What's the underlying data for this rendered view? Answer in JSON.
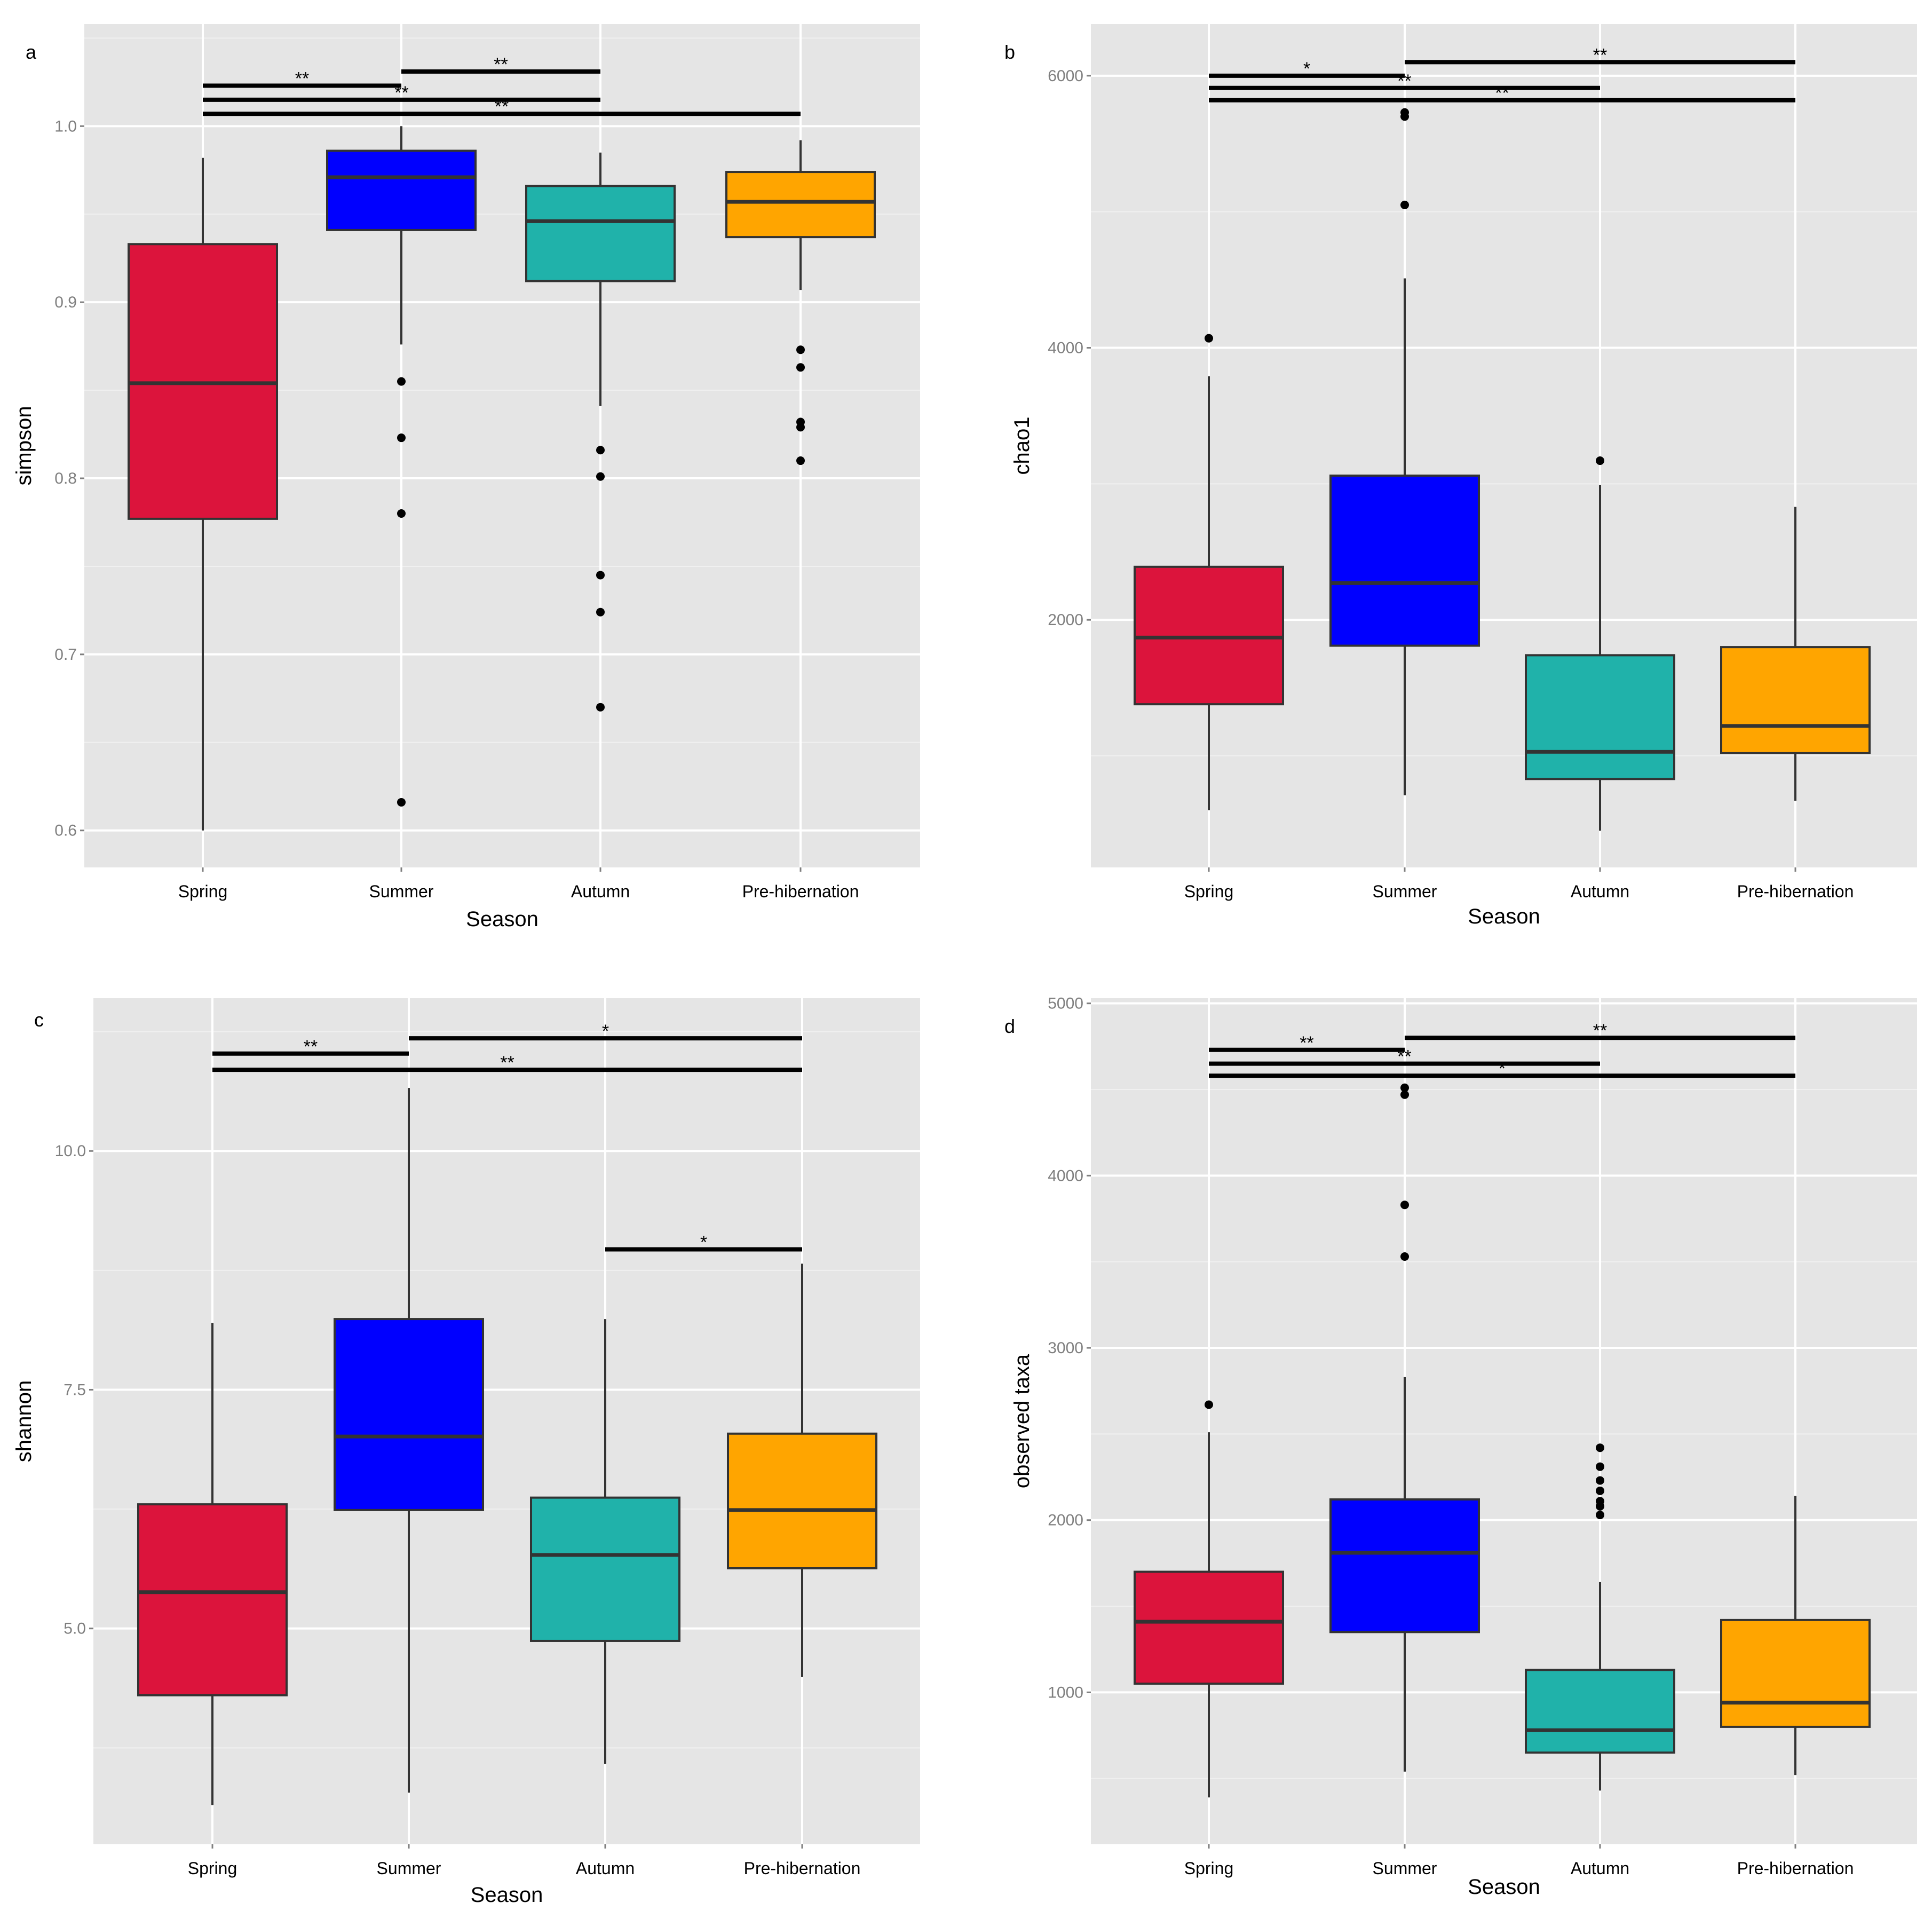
{
  "figure": {
    "background": "#ffffff",
    "panel_background": "#e5e5e5",
    "grid_color": "#ffffff",
    "box_outline": "#333333"
  },
  "chart_data": [
    {
      "type": "box",
      "id": "a",
      "panel_label": "a",
      "xlabel": "Season",
      "ylabel": "simpson",
      "categories": [
        "Spring",
        "Summer",
        "Autumn",
        "Pre-hibernation"
      ],
      "colors": [
        "#dc143c",
        "#0000ff",
        "#20b2aa",
        "#ffa500"
      ],
      "ylim": [
        0.579,
        1.058
      ],
      "yticks": [
        0.6,
        0.7,
        0.8,
        0.9,
        1.0
      ],
      "ytick_labels": [
        "0.6",
        "0.7",
        "0.8",
        "0.9",
        "1.0"
      ],
      "boxes": [
        {
          "category": "Spring",
          "whisker_low": 0.6,
          "q1": 0.777,
          "median": 0.854,
          "q3": 0.933,
          "whisker_high": 0.982,
          "outliers": []
        },
        {
          "category": "Summer",
          "whisker_low": 0.876,
          "q1": 0.941,
          "median": 0.971,
          "q3": 0.986,
          "whisker_high": 1.0,
          "outliers": [
            0.855,
            0.823,
            0.78,
            0.616
          ]
        },
        {
          "category": "Autumn",
          "whisker_low": 0.841,
          "q1": 0.912,
          "median": 0.946,
          "q3": 0.966,
          "whisker_high": 0.985,
          "outliers": [
            0.816,
            0.801,
            0.745,
            0.724,
            0.67
          ]
        },
        {
          "category": "Pre-hibernation",
          "whisker_low": 0.907,
          "q1": 0.937,
          "median": 0.957,
          "q3": 0.974,
          "whisker_high": 0.992,
          "outliers": [
            0.873,
            0.863,
            0.832,
            0.829,
            0.81
          ]
        }
      ],
      "significance": [
        {
          "from": "Spring",
          "to": "Summer",
          "y": 1.023,
          "label": "**"
        },
        {
          "from": "Summer",
          "to": "Autumn",
          "y": 1.031,
          "label": "**"
        },
        {
          "from": "Spring",
          "to": "Autumn",
          "y": 1.015,
          "label": "**"
        },
        {
          "from": "Spring",
          "to": "Pre-hibernation",
          "y": 1.007,
          "label": "**"
        }
      ]
    },
    {
      "type": "box",
      "id": "b",
      "panel_label": "b",
      "xlabel": "Season",
      "ylabel": "chao1",
      "categories": [
        "Spring",
        "Summer",
        "Autumn",
        "Pre-hibernation"
      ],
      "colors": [
        "#dc143c",
        "#0000ff",
        "#20b2aa",
        "#ffa500"
      ],
      "ylim": [
        180,
        6380
      ],
      "yticks": [
        2000,
        4000,
        6000
      ],
      "ytick_labels": [
        "2000",
        "4000",
        "6000"
      ],
      "boxes": [
        {
          "category": "Spring",
          "whisker_low": 600,
          "q1": 1380,
          "median": 1870,
          "q3": 2390,
          "whisker_high": 3790,
          "outliers": [
            4070
          ]
        },
        {
          "category": "Summer",
          "whisker_low": 710,
          "q1": 1810,
          "median": 2270,
          "q3": 3060,
          "whisker_high": 4510,
          "outliers": [
            5050,
            5700,
            5730
          ]
        },
        {
          "category": "Autumn",
          "whisker_low": 450,
          "q1": 830,
          "median": 1030,
          "q3": 1740,
          "whisker_high": 2990,
          "outliers": [
            3170
          ]
        },
        {
          "category": "Pre-hibernation",
          "whisker_low": 670,
          "q1": 1020,
          "median": 1220,
          "q3": 1800,
          "whisker_high": 2830,
          "outliers": []
        }
      ],
      "significance": [
        {
          "from": "Spring",
          "to": "Summer",
          "y": 6000,
          "label": "*"
        },
        {
          "from": "Summer",
          "to": "Pre-hibernation",
          "y": 6100,
          "label": "**"
        },
        {
          "from": "Spring",
          "to": "Autumn",
          "y": 5910,
          "label": "**"
        },
        {
          "from": "Spring",
          "to": "Pre-hibernation",
          "y": 5820,
          "label": "**"
        }
      ]
    },
    {
      "type": "box",
      "id": "c",
      "panel_label": "c",
      "xlabel": "Season",
      "ylabel": "shannon",
      "categories": [
        "Spring",
        "Summer",
        "Autumn",
        "Pre-hibernation"
      ],
      "colors": [
        "#dc143c",
        "#0000ff",
        "#20b2aa",
        "#ffa500"
      ],
      "ylim": [
        2.74,
        11.6
      ],
      "yticks": [
        5.0,
        7.5,
        10.0
      ],
      "ytick_labels": [
        "5.0",
        "7.5",
        "10.0"
      ],
      "boxes": [
        {
          "category": "Spring",
          "whisker_low": 3.15,
          "q1": 4.3,
          "median": 5.38,
          "q3": 6.3,
          "whisker_high": 8.2,
          "outliers": []
        },
        {
          "category": "Summer",
          "whisker_low": 3.28,
          "q1": 6.24,
          "median": 7.01,
          "q3": 8.24,
          "whisker_high": 10.66,
          "outliers": []
        },
        {
          "category": "Autumn",
          "whisker_low": 3.58,
          "q1": 4.87,
          "median": 5.77,
          "q3": 6.37,
          "whisker_high": 8.24,
          "outliers": []
        },
        {
          "category": "Pre-hibernation",
          "whisker_low": 4.49,
          "q1": 5.63,
          "median": 6.24,
          "q3": 7.04,
          "whisker_high": 8.82,
          "outliers": []
        }
      ],
      "significance": [
        {
          "from": "Spring",
          "to": "Summer",
          "y": 11.02,
          "label": "**"
        },
        {
          "from": "Summer",
          "to": "Pre-hibernation",
          "y": 11.18,
          "label": "*"
        },
        {
          "from": "Spring",
          "to": "Pre-hibernation",
          "y": 10.85,
          "label": "**"
        },
        {
          "from": "Autumn",
          "to": "Pre-hibernation",
          "y": 8.97,
          "label": "*"
        }
      ]
    },
    {
      "type": "box",
      "id": "d",
      "panel_label": "d",
      "xlabel": "Season",
      "ylabel": "observed taxa",
      "categories": [
        "Spring",
        "Summer",
        "Autumn",
        "Pre-hibernation"
      ],
      "colors": [
        "#dc143c",
        "#0000ff",
        "#20b2aa",
        "#ffa500"
      ],
      "ylim": [
        118,
        5030
      ],
      "yticks": [
        1000,
        2000,
        3000,
        4000,
        5000
      ],
      "ytick_labels": [
        "1000",
        "2000",
        "3000",
        "4000",
        "5000"
      ],
      "boxes": [
        {
          "category": "Spring",
          "whisker_low": 390,
          "q1": 1050,
          "median": 1410,
          "q3": 1700,
          "whisker_high": 2510,
          "outliers": [
            2670
          ]
        },
        {
          "category": "Summer",
          "whisker_low": 540,
          "q1": 1350,
          "median": 1810,
          "q3": 2120,
          "whisker_high": 2830,
          "outliers": [
            3530,
            3830,
            4470,
            4510
          ]
        },
        {
          "category": "Autumn",
          "whisker_low": 430,
          "q1": 650,
          "median": 780,
          "q3": 1130,
          "whisker_high": 1640,
          "outliers": [
            2030,
            2080,
            2110,
            2170,
            2230,
            2310,
            2420
          ]
        },
        {
          "category": "Pre-hibernation",
          "whisker_low": 520,
          "q1": 800,
          "median": 940,
          "q3": 1420,
          "whisker_high": 2140,
          "outliers": []
        }
      ],
      "significance": [
        {
          "from": "Spring",
          "to": "Summer",
          "y": 4730,
          "label": "**"
        },
        {
          "from": "Summer",
          "to": "Pre-hibernation",
          "y": 4800,
          "label": "**"
        },
        {
          "from": "Spring",
          "to": "Autumn",
          "y": 4650,
          "label": "**"
        },
        {
          "from": "Spring",
          "to": "Pre-hibernation",
          "y": 4580,
          "label": "*"
        }
      ]
    }
  ]
}
